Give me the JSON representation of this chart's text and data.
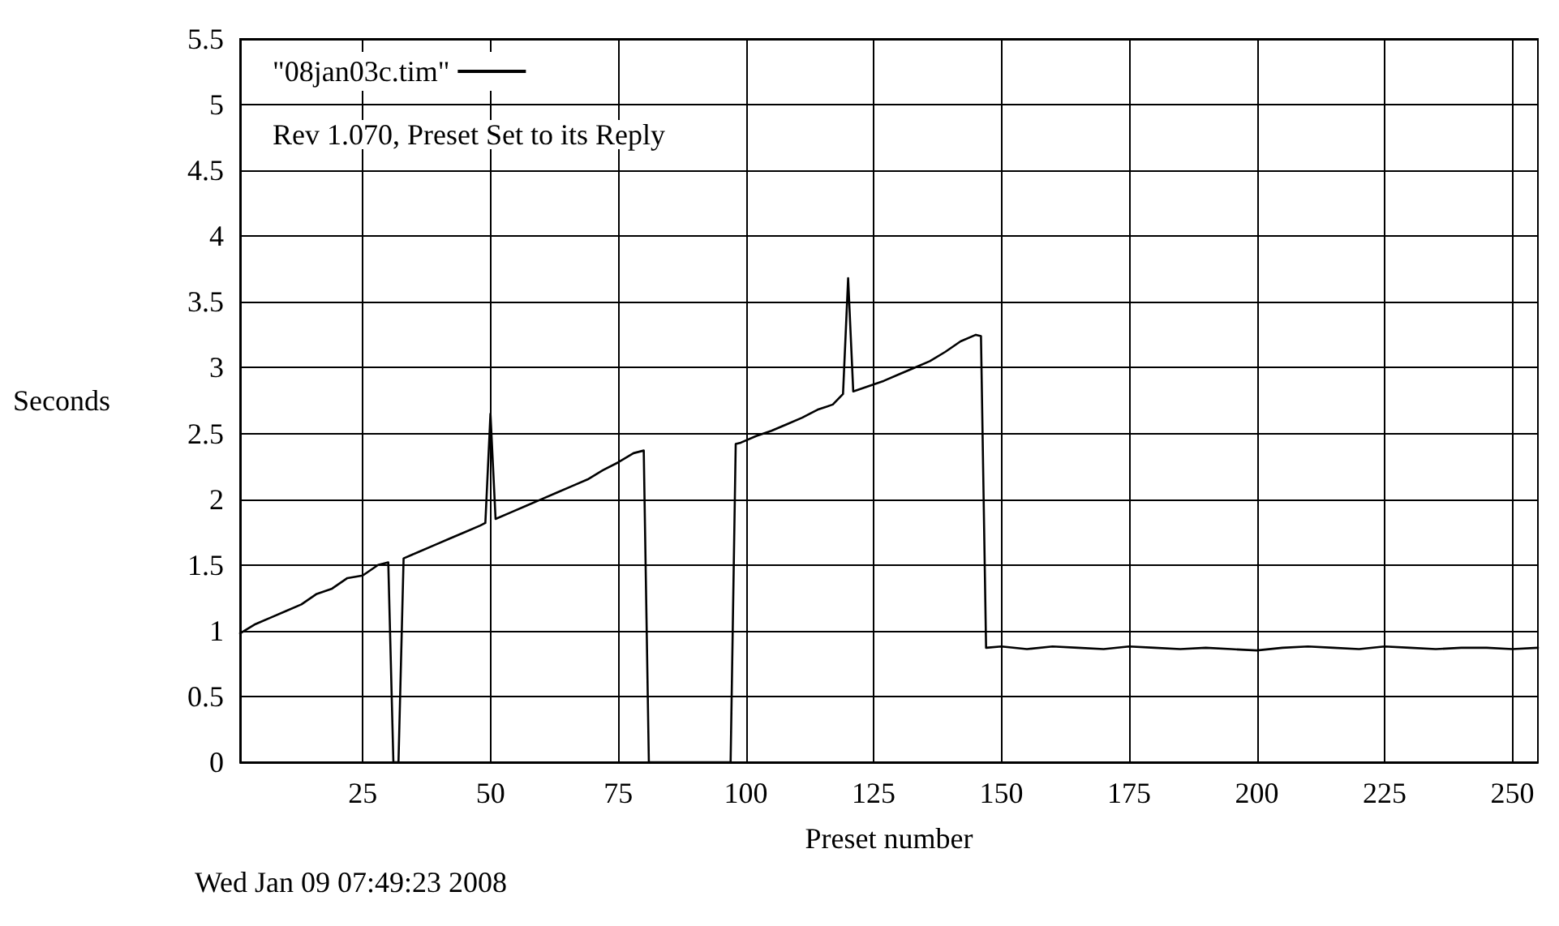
{
  "chart_data": {
    "type": "line",
    "xlabel": "Preset number",
    "ylabel": "Seconds",
    "annotations": [
      "Rev 1.070, Preset Set to its Reply",
      "Wed Jan 09 07:49:23 2008"
    ],
    "x": [
      1,
      4,
      7,
      10,
      13,
      16,
      19,
      22,
      25,
      28,
      30,
      31,
      32,
      33,
      36,
      39,
      42,
      45,
      48,
      49,
      50,
      51,
      54,
      57,
      60,
      63,
      66,
      69,
      72,
      75,
      78,
      80,
      81,
      97,
      98,
      99,
      102,
      105,
      108,
      111,
      114,
      117,
      119,
      120,
      121,
      124,
      127,
      130,
      133,
      136,
      139,
      142,
      145,
      146,
      147,
      150,
      155,
      160,
      165,
      170,
      175,
      180,
      185,
      190,
      195,
      200,
      205,
      210,
      215,
      220,
      225,
      230,
      235,
      240,
      245,
      250,
      255
    ],
    "series": [
      {
        "name": "\"08jan03c.tim\"",
        "color": "#000000",
        "values": [
          0.98,
          1.05,
          1.1,
          1.15,
          1.2,
          1.28,
          1.32,
          1.4,
          1.42,
          1.5,
          1.52,
          0,
          0,
          1.55,
          1.6,
          1.65,
          1.7,
          1.75,
          1.8,
          1.82,
          2.65,
          1.85,
          1.9,
          1.95,
          2.0,
          2.05,
          2.1,
          2.15,
          2.22,
          2.28,
          2.35,
          2.37,
          0,
          0,
          2.42,
          2.43,
          2.48,
          2.52,
          2.57,
          2.62,
          2.68,
          2.72,
          2.8,
          3.68,
          2.82,
          2.86,
          2.9,
          2.95,
          3.0,
          3.05,
          3.12,
          3.2,
          3.25,
          3.24,
          0.87,
          0.88,
          0.86,
          0.88,
          0.87,
          0.86,
          0.88,
          0.87,
          0.86,
          0.87,
          0.86,
          0.85,
          0.87,
          0.88,
          0.87,
          0.86,
          0.88,
          0.87,
          0.86,
          0.87,
          0.87,
          0.86,
          0.87
        ]
      }
    ],
    "xlim": [
      1,
      255
    ],
    "xticks": [
      25,
      50,
      75,
      100,
      125,
      150,
      175,
      200,
      225,
      250
    ],
    "ylim": [
      0,
      5.5
    ],
    "yticks": [
      0,
      0.5,
      1,
      1.5,
      2,
      2.5,
      3,
      3.5,
      4,
      4.5,
      5,
      5.5
    ],
    "grid": true,
    "legend": "top left",
    "marker": "none",
    "line_style": "solid"
  }
}
